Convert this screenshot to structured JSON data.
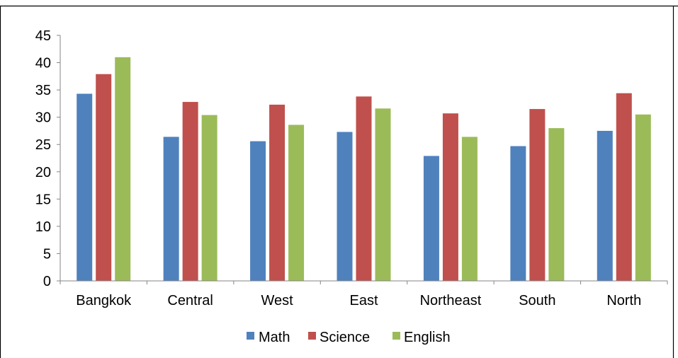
{
  "chart_data": {
    "type": "bar",
    "title": "",
    "xlabel": "",
    "ylabel": "",
    "ylim": [
      0,
      45
    ],
    "yticks": [
      0,
      5,
      10,
      15,
      20,
      25,
      30,
      35,
      40,
      45
    ],
    "grid": false,
    "legend_position": "bottom",
    "categories": [
      "Bangkok",
      "Central",
      "West",
      "East",
      "Northeast",
      "South",
      "North"
    ],
    "series": [
      {
        "name": "Math",
        "color": "#4F81BD",
        "values": [
          34.3,
          26.4,
          25.6,
          27.3,
          22.9,
          24.7,
          27.5
        ]
      },
      {
        "name": "Science",
        "color": "#C0504D",
        "values": [
          37.9,
          32.8,
          32.3,
          33.8,
          30.7,
          31.5,
          34.4
        ]
      },
      {
        "name": "English",
        "color": "#9BBB59",
        "values": [
          41.0,
          30.4,
          28.6,
          31.6,
          26.4,
          28.0,
          30.5
        ]
      }
    ]
  }
}
